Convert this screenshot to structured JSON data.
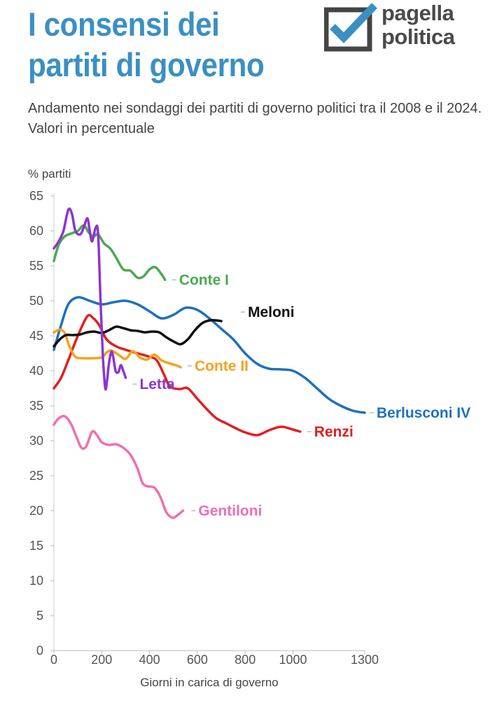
{
  "header": {
    "title": "I consensi dei partiti di governo",
    "subtitle": "Andamento nei sondaggi dei partiti di governo politici tra il 2008 e il 2024. Valori in percentuale"
  },
  "logo": {
    "line1": "pagella",
    "line2": "politica",
    "icon": "checkbox-check-icon",
    "box_color": "#444444",
    "check_color": "#3b8fc2"
  },
  "chart_data": {
    "type": "line",
    "title": "I consensi dei partiti di governo",
    "xlabel": "Giorni in carica di governo",
    "ylabel": "% partiti",
    "xlim": [
      0,
      1300
    ],
    "ylim": [
      0,
      65
    ],
    "x_ticks": [
      0,
      200,
      400,
      600,
      800,
      1000,
      1300
    ],
    "y_ticks": [
      0,
      5,
      10,
      15,
      20,
      25,
      30,
      35,
      40,
      45,
      50,
      55,
      60,
      65
    ],
    "grid": false,
    "series": [
      {
        "name": "Berlusconi IV",
        "color": "#1f6fbf",
        "x": [
          0,
          30,
          60,
          100,
          150,
          200,
          250,
          300,
          350,
          400,
          450,
          500,
          550,
          600,
          650,
          700,
          750,
          800,
          850,
          900,
          950,
          1000,
          1050,
          1100,
          1150,
          1200,
          1250,
          1300
        ],
        "y": [
          43,
          46.5,
          49.5,
          50.5,
          50,
          49.5,
          49.8,
          50,
          49.5,
          48.5,
          47.5,
          48,
          49,
          48.7,
          47.5,
          46,
          44.5,
          42.5,
          41,
          40.3,
          40.2,
          40,
          39,
          37.5,
          36,
          35,
          34.3,
          34
        ]
      },
      {
        "name": "Renzi",
        "color": "#e31e1e",
        "x": [
          0,
          30,
          60,
          100,
          140,
          165,
          190,
          220,
          260,
          300,
          350,
          400,
          430,
          460,
          480,
          500,
          530,
          560,
          600,
          640,
          680,
          720,
          760,
          800,
          850,
          900,
          950,
          1000,
          1030
        ],
        "y": [
          37.5,
          39,
          41.5,
          45,
          47.8,
          47.5,
          46.5,
          44.5,
          43.5,
          43,
          42.5,
          42,
          41.5,
          39.5,
          38,
          37.5,
          37.4,
          37.5,
          36,
          34.5,
          33.2,
          32.5,
          31.8,
          31.2,
          30.8,
          31.5,
          32,
          31.6,
          31.3
        ]
      },
      {
        "name": "Gentiloni",
        "color": "#f06fb0",
        "x": [
          0,
          20,
          45,
          70,
          95,
          115,
          135,
          160,
          180,
          200,
          230,
          260,
          290,
          320,
          350,
          370,
          390,
          420,
          445,
          470,
          495,
          515,
          540
        ],
        "y": [
          32.3,
          33.2,
          33.5,
          32.5,
          30.5,
          29,
          29.2,
          31.3,
          30.8,
          29.8,
          29.4,
          29.5,
          29,
          28,
          26,
          24,
          23.5,
          23.3,
          22,
          19.8,
          19,
          19.3,
          20
        ]
      },
      {
        "name": "Conte I",
        "color": "#4aaa52",
        "x": [
          0,
          20,
          45,
          70,
          100,
          125,
          145,
          165,
          185,
          210,
          235,
          260,
          290,
          320,
          350,
          375,
          400,
          425,
          450,
          465
        ],
        "y": [
          55.7,
          58,
          59.2,
          59.6,
          60,
          60.8,
          59.8,
          59.2,
          59.5,
          58.2,
          57.5,
          56.2,
          54.5,
          54.3,
          53.3,
          53.5,
          54.5,
          54.8,
          53.8,
          53
        ]
      },
      {
        "name": "Conte II",
        "color": "#f5a21b",
        "x": [
          0,
          25,
          45,
          65,
          90,
          120,
          160,
          200,
          220,
          240,
          270,
          300,
          330,
          360,
          390,
          420,
          450,
          480,
          510,
          530
        ],
        "y": [
          45.5,
          45.9,
          45.4,
          43.5,
          42,
          41.8,
          41.8,
          41.9,
          42.6,
          42.9,
          42.3,
          41.7,
          42.8,
          41.9,
          41.6,
          42.3,
          41.5,
          41.1,
          40.8,
          40.5
        ]
      },
      {
        "name": "Letta",
        "color": "#8c35d2",
        "x": [
          0,
          20,
          40,
          60,
          75,
          90,
          110,
          125,
          140,
          150,
          160,
          175,
          185,
          195,
          205,
          215,
          222,
          230,
          240,
          248,
          258,
          270,
          280,
          290,
          300
        ],
        "y": [
          57.5,
          58.5,
          60,
          63,
          62.5,
          60,
          59.5,
          60.5,
          61.8,
          60,
          58.5,
          60.5,
          59.5,
          50,
          42,
          37.5,
          38.5,
          41,
          42.7,
          42,
          40,
          39.8,
          40.8,
          40,
          39
        ]
      },
      {
        "name": "Meloni",
        "color": "#111111",
        "x": [
          0,
          25,
          50,
          80,
          110,
          140,
          170,
          200,
          230,
          260,
          290,
          320,
          350,
          380,
          410,
          440,
          470,
          500,
          530,
          560,
          590,
          620,
          650,
          680,
          700
        ],
        "y": [
          43.5,
          44.5,
          45.1,
          45.1,
          45.2,
          45.5,
          45.6,
          45.4,
          45.8,
          46.3,
          46.1,
          45.8,
          45.7,
          45.5,
          45.6,
          45.5,
          44.8,
          44.2,
          43.8,
          44.5,
          45.8,
          46.8,
          47.2,
          47.2,
          47.1
        ]
      }
    ],
    "labels": [
      {
        "series": "Conte I",
        "text": "Conte I"
      },
      {
        "series": "Meloni",
        "text": "Meloni"
      },
      {
        "series": "Conte II",
        "text": "Conte II"
      },
      {
        "series": "Letta",
        "text": "Letta"
      },
      {
        "series": "Berlusconi IV",
        "text": "Berlusconi IV"
      },
      {
        "series": "Renzi",
        "text": "Renzi"
      },
      {
        "series": "Gentiloni",
        "text": "Gentiloni"
      }
    ]
  }
}
